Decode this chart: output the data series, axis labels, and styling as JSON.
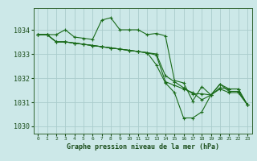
{
  "title": "Graphe pression niveau de la mer (hPa)",
  "bg_color": "#cce8e8",
  "grid_color": "#aacccc",
  "line_color": "#1a6b1a",
  "marker_color": "#1a6b1a",
  "xlim": [
    -0.5,
    23.5
  ],
  "ylim": [
    1029.7,
    1034.9
  ],
  "yticks": [
    1030,
    1031,
    1032,
    1033,
    1034
  ],
  "xticks": [
    0,
    1,
    2,
    3,
    4,
    5,
    6,
    7,
    8,
    9,
    10,
    11,
    12,
    13,
    14,
    15,
    16,
    17,
    18,
    19,
    20,
    21,
    22,
    23
  ],
  "series": [
    {
      "x": [
        0,
        1,
        2,
        3,
        4,
        5,
        6,
        7,
        8,
        9,
        10,
        11,
        12,
        13,
        14,
        15,
        16,
        17,
        18,
        19,
        20,
        21,
        22,
        23
      ],
      "y": [
        1033.8,
        1033.8,
        1033.8,
        1034.0,
        1033.7,
        1033.65,
        1033.6,
        1034.4,
        1034.5,
        1034.0,
        1034.0,
        1034.0,
        1033.8,
        1033.85,
        1033.75,
        1031.9,
        1031.8,
        1031.05,
        1031.65,
        1031.3,
        1031.75,
        1031.55,
        1031.55,
        1030.9
      ]
    },
    {
      "x": [
        0,
        1,
        2,
        3,
        4,
        5,
        6,
        7,
        8,
        9,
        10,
        11,
        12,
        13,
        14,
        15,
        16,
        17,
        18,
        19,
        20,
        21,
        22,
        23
      ],
      "y": [
        1033.8,
        1033.8,
        1033.5,
        1033.5,
        1033.45,
        1033.4,
        1033.35,
        1033.3,
        1033.25,
        1033.2,
        1033.15,
        1033.1,
        1033.05,
        1033.0,
        1032.1,
        1031.85,
        1031.6,
        1031.35,
        1031.35,
        1031.3,
        1031.55,
        1031.4,
        1031.4,
        1030.9
      ]
    },
    {
      "x": [
        0,
        1,
        2,
        3,
        4,
        5,
        6,
        7,
        8,
        9,
        10,
        11,
        12,
        13,
        14,
        15,
        16,
        17,
        18,
        19,
        20,
        21,
        22,
        23
      ],
      "y": [
        1033.8,
        1033.8,
        1033.5,
        1033.5,
        1033.45,
        1033.4,
        1033.35,
        1033.3,
        1033.25,
        1033.2,
        1033.15,
        1033.1,
        1033.05,
        1032.55,
        1031.8,
        1031.4,
        1030.35,
        1030.35,
        1030.6,
        1031.3,
        1031.6,
        1031.55,
        1031.55,
        1030.9
      ]
    },
    {
      "x": [
        0,
        1,
        2,
        3,
        4,
        5,
        6,
        7,
        8,
        9,
        10,
        11,
        12,
        13,
        14,
        15,
        16,
        17,
        18,
        19,
        20,
        21,
        22,
        23
      ],
      "y": [
        1033.8,
        1033.8,
        1033.5,
        1033.5,
        1033.45,
        1033.4,
        1033.35,
        1033.3,
        1033.25,
        1033.2,
        1033.15,
        1033.1,
        1033.05,
        1032.95,
        1031.85,
        1031.7,
        1031.55,
        1031.4,
        1031.1,
        1031.3,
        1031.75,
        1031.45,
        1031.45,
        1030.9
      ]
    }
  ]
}
